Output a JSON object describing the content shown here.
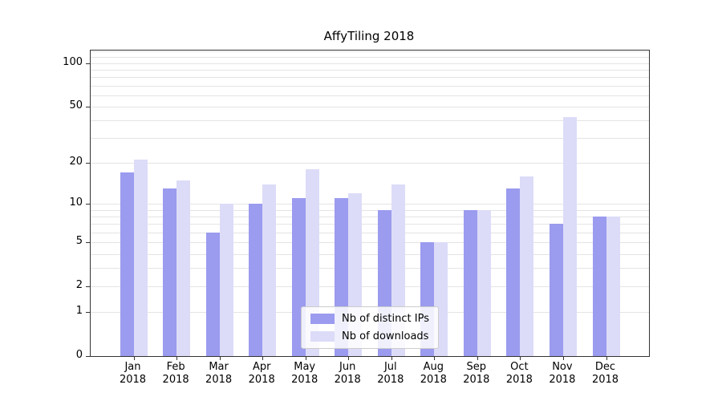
{
  "chart_data": {
    "type": "bar",
    "title": "AffyTiling 2018",
    "categories": [
      "Jan",
      "Feb",
      "Mar",
      "Apr",
      "May",
      "Jun",
      "Jul",
      "Aug",
      "Sep",
      "Oct",
      "Nov",
      "Dec"
    ],
    "year_label": "2018",
    "series": [
      {
        "name": "Nb of distinct IPs",
        "color": "#9b9bef",
        "values": [
          17,
          13,
          6,
          10,
          11,
          11,
          9,
          5,
          9,
          13,
          7,
          8
        ]
      },
      {
        "name": "Nb of downloads",
        "color": "#dcdcf8",
        "values": [
          21,
          15,
          10,
          14,
          18,
          12,
          14,
          5,
          9,
          16,
          42,
          8
        ]
      }
    ],
    "y_ticks": [
      0,
      1,
      2,
      5,
      10,
      20,
      50,
      100
    ],
    "y_scale": "log10(1+v)",
    "ylim": [
      0,
      122
    ],
    "gridline_values": [
      1,
      2,
      3,
      4,
      5,
      6,
      7,
      8,
      9,
      10,
      20,
      30,
      40,
      50,
      60,
      70,
      80,
      90,
      100,
      110,
      120
    ],
    "grid": true,
    "legend_position": "lower center"
  }
}
